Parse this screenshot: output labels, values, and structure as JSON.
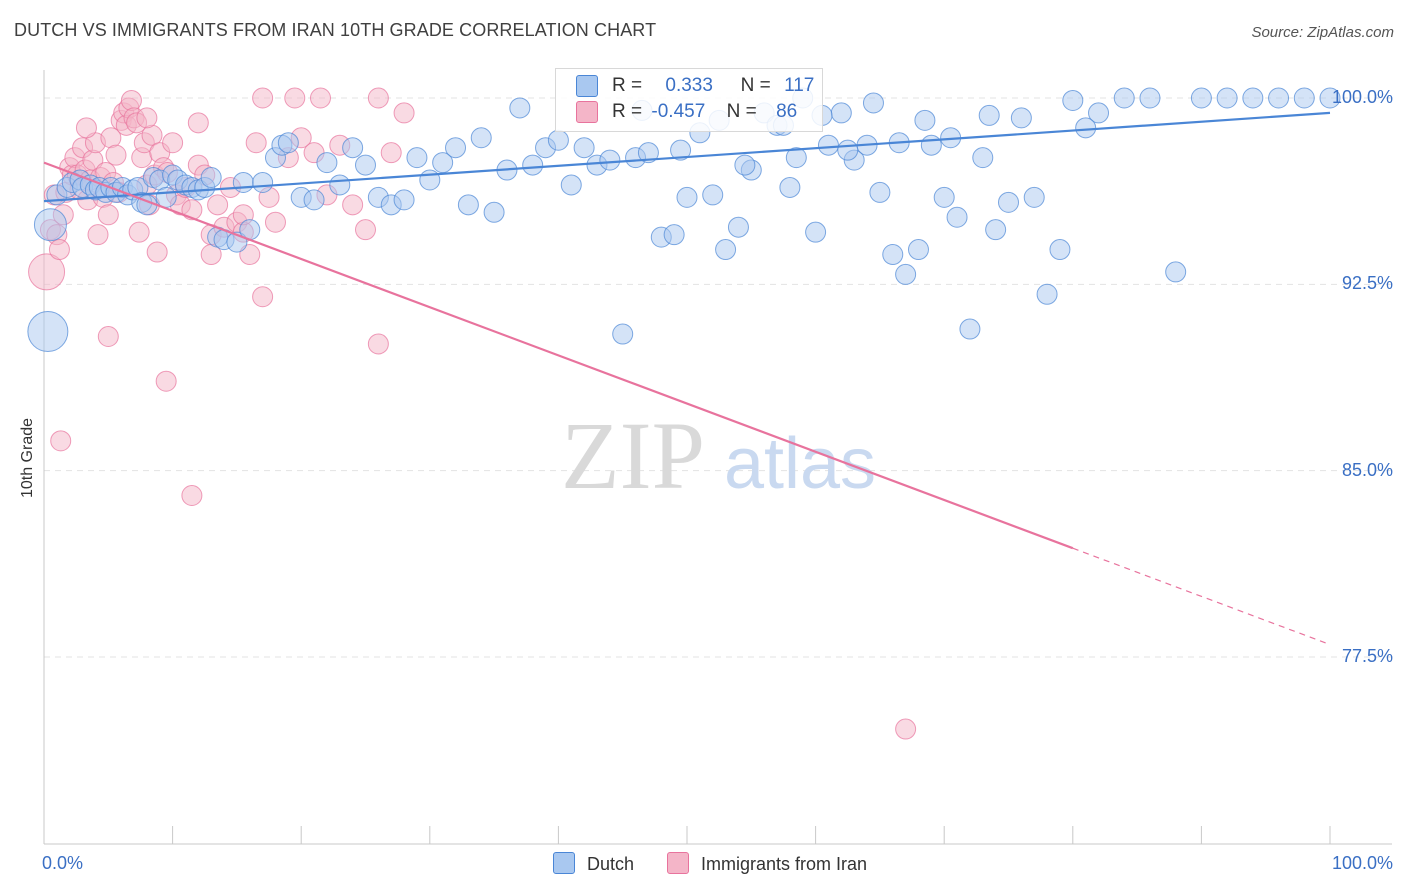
{
  "title": "DUTCH VS IMMIGRANTS FROM IRAN 10TH GRADE CORRELATION CHART",
  "source": "Source: ZipAtlas.com",
  "watermark": {
    "zip": "ZIP",
    "atlas": "atlas"
  },
  "legend": {
    "rows": [
      {
        "r_label": "R =",
        "r_value": "0.333",
        "n_label": "N =",
        "n_value": "117",
        "color": "#a9c8f0"
      },
      {
        "r_label": "R =",
        "r_value": "-0.457",
        "n_label": "N =",
        "n_value": "86",
        "color": "#f4b5c8"
      }
    ]
  },
  "bottom_legend": [
    {
      "label": "Dutch",
      "color": "#a9c8f0"
    },
    {
      "label": "Immigrants from Iran",
      "color": "#f4b5c8"
    }
  ],
  "chart_data": {
    "type": "scatter",
    "title": "DUTCH VS IMMIGRANTS FROM IRAN 10TH GRADE CORRELATION CHART",
    "xlabel": "",
    "ylabel": "10th Grade",
    "xlim": [
      0,
      100
    ],
    "ylim": [
      70.8,
      100.8
    ],
    "x_tick_labels": [
      "0.0%",
      "100.0%"
    ],
    "y_ticks": [
      100.0,
      92.5,
      85.0,
      77.5
    ],
    "y_tick_labels": [
      "100.0%",
      "92.5%",
      "85.0%",
      "77.5%"
    ],
    "grid": true,
    "series": [
      {
        "name": "Dutch",
        "color": "#4a86d6",
        "fill": "#a9c8f0",
        "trend": {
          "x0": 0,
          "y0": 95.85,
          "x1": 100,
          "y1": 99.4,
          "dashed_from": null
        },
        "points": [
          [
            0.3,
            90.6,
            20
          ],
          [
            0.5,
            94.9,
            16
          ],
          [
            1.0,
            96.1,
            10
          ],
          [
            1.8,
            96.4,
            10
          ],
          [
            2.2,
            96.6,
            10
          ],
          [
            2.8,
            96.7,
            10
          ],
          [
            3.0,
            96.4,
            10
          ],
          [
            3.6,
            96.5,
            10
          ],
          [
            4.0,
            96.3,
            10
          ],
          [
            4.3,
            96.4,
            10
          ],
          [
            4.8,
            96.2,
            10
          ],
          [
            5.2,
            96.4,
            10
          ],
          [
            5.6,
            96.2,
            10
          ],
          [
            6.1,
            96.4,
            10
          ],
          [
            6.5,
            96.1,
            10
          ],
          [
            6.9,
            96.3,
            10
          ],
          [
            7.3,
            96.4,
            10
          ],
          [
            7.6,
            95.8,
            10
          ],
          [
            8.0,
            95.7,
            10
          ],
          [
            8.5,
            96.8,
            10
          ],
          [
            9.0,
            96.7,
            10
          ],
          [
            9.5,
            96.0,
            10
          ],
          [
            10.0,
            96.9,
            10
          ],
          [
            10.4,
            96.7,
            10
          ],
          [
            11.0,
            96.5,
            10
          ],
          [
            11.5,
            96.4,
            10
          ],
          [
            12.0,
            96.3,
            10
          ],
          [
            12.5,
            96.4,
            10
          ],
          [
            13.0,
            96.8,
            10
          ],
          [
            13.5,
            94.4,
            10
          ],
          [
            14.0,
            94.3,
            10
          ],
          [
            15.0,
            94.2,
            10
          ],
          [
            15.5,
            96.6,
            10
          ],
          [
            16.0,
            94.7,
            10
          ],
          [
            17.0,
            96.6,
            10
          ],
          [
            18.0,
            97.6,
            10
          ],
          [
            18.5,
            98.1,
            10
          ],
          [
            19.0,
            98.2,
            10
          ],
          [
            20.0,
            96.0,
            10
          ],
          [
            21.0,
            95.9,
            10
          ],
          [
            22.0,
            97.4,
            10
          ],
          [
            23.0,
            96.5,
            10
          ],
          [
            24.0,
            98.0,
            10
          ],
          [
            25.0,
            97.3,
            10
          ],
          [
            26.0,
            96.0,
            10
          ],
          [
            27.0,
            95.7,
            10
          ],
          [
            28.0,
            95.9,
            10
          ],
          [
            29.0,
            97.6,
            10
          ],
          [
            30.0,
            96.7,
            10
          ],
          [
            31.0,
            97.4,
            10
          ],
          [
            32.0,
            98.0,
            10
          ],
          [
            33.0,
            95.7,
            10
          ],
          [
            34.0,
            98.4,
            10
          ],
          [
            35.0,
            95.4,
            10
          ],
          [
            36.0,
            97.1,
            10
          ],
          [
            37.0,
            99.6,
            10
          ],
          [
            38.0,
            97.3,
            10
          ],
          [
            39.0,
            98.0,
            10
          ],
          [
            40.0,
            98.3,
            10
          ],
          [
            41.0,
            96.5,
            10
          ],
          [
            42.0,
            98.0,
            10
          ],
          [
            43.0,
            97.3,
            10
          ],
          [
            44.0,
            97.5,
            10
          ],
          [
            45.0,
            90.5,
            10
          ],
          [
            46.0,
            97.6,
            10
          ],
          [
            47.0,
            97.8,
            10
          ],
          [
            48.0,
            94.4,
            10
          ],
          [
            49.0,
            94.5,
            10
          ],
          [
            50.0,
            96.0,
            10
          ],
          [
            51.0,
            98.6,
            10
          ],
          [
            52.0,
            96.1,
            10
          ],
          [
            53.0,
            93.9,
            10
          ],
          [
            54.0,
            94.8,
            10
          ],
          [
            55.0,
            97.1,
            10
          ],
          [
            56.0,
            99.4,
            10
          ],
          [
            57.0,
            98.9,
            10
          ],
          [
            58.0,
            96.4,
            10
          ],
          [
            59.0,
            100.0,
            10
          ],
          [
            60.0,
            94.6,
            10
          ],
          [
            61.0,
            98.1,
            10
          ],
          [
            62.0,
            99.4,
            10
          ],
          [
            63.0,
            97.5,
            10
          ],
          [
            64.0,
            98.1,
            10
          ],
          [
            65.0,
            96.2,
            10
          ],
          [
            66.0,
            93.7,
            10
          ],
          [
            67.0,
            92.9,
            10
          ],
          [
            68.0,
            93.9,
            10
          ],
          [
            69.0,
            98.1,
            10
          ],
          [
            70.0,
            96.0,
            10
          ],
          [
            71.0,
            95.2,
            10
          ],
          [
            72.0,
            90.7,
            10
          ],
          [
            73.0,
            97.6,
            10
          ],
          [
            74.0,
            94.7,
            10
          ],
          [
            75.0,
            95.8,
            10
          ],
          [
            76.0,
            99.2,
            10
          ],
          [
            77.0,
            96.0,
            10
          ],
          [
            78.0,
            92.1,
            10
          ],
          [
            79.0,
            93.9,
            10
          ],
          [
            80.0,
            99.9,
            10
          ],
          [
            82.0,
            99.4,
            10
          ],
          [
            84.0,
            100.0,
            10
          ],
          [
            86.0,
            100.0,
            10
          ],
          [
            88.0,
            93.0,
            10
          ],
          [
            90.0,
            100.0,
            10
          ],
          [
            92.0,
            100.0,
            10
          ],
          [
            94.0,
            100.0,
            10
          ],
          [
            96.0,
            100.0,
            10
          ],
          [
            98.0,
            100.0,
            10
          ],
          [
            100.0,
            100.0,
            10
          ],
          [
            46.5,
            99.5,
            10
          ],
          [
            52.5,
            99.1,
            10
          ],
          [
            57.5,
            98.9,
            10
          ],
          [
            60.5,
            99.3,
            10
          ],
          [
            64.5,
            99.8,
            10
          ],
          [
            68.5,
            99.1,
            10
          ],
          [
            73.5,
            99.3,
            10
          ],
          [
            81.0,
            98.8,
            10
          ],
          [
            49.5,
            97.9,
            10
          ],
          [
            54.5,
            97.3,
            10
          ],
          [
            58.5,
            97.6,
            10
          ],
          [
            62.5,
            97.9,
            10
          ],
          [
            66.5,
            98.2,
            10
          ],
          [
            70.5,
            98.4,
            10
          ]
        ]
      },
      {
        "name": "Immigrants from Iran",
        "color": "#e8739d",
        "fill": "#f4b5c8",
        "trend": {
          "x0": 0,
          "y0": 97.4,
          "x1": 100,
          "y1": 78.0,
          "dashed_from": 80
        },
        "points": [
          [
            0.2,
            93.0,
            18
          ],
          [
            0.5,
            94.7,
            10
          ],
          [
            0.8,
            96.1,
            10
          ],
          [
            1.0,
            94.5,
            10
          ],
          [
            1.2,
            93.9,
            10
          ],
          [
            1.5,
            95.3,
            10
          ],
          [
            1.7,
            96.2,
            10
          ],
          [
            2.0,
            97.2,
            10
          ],
          [
            2.2,
            96.9,
            10
          ],
          [
            2.4,
            97.6,
            10
          ],
          [
            2.6,
            96.9,
            10
          ],
          [
            2.8,
            96.3,
            10
          ],
          [
            3.0,
            98.0,
            10
          ],
          [
            3.2,
            97.1,
            10
          ],
          [
            3.4,
            95.9,
            10
          ],
          [
            3.6,
            96.7,
            10
          ],
          [
            3.8,
            97.5,
            10
          ],
          [
            4.0,
            98.2,
            10
          ],
          [
            4.2,
            94.5,
            10
          ],
          [
            4.4,
            96.8,
            10
          ],
          [
            4.6,
            96.0,
            10
          ],
          [
            4.8,
            97.0,
            10
          ],
          [
            5.0,
            95.3,
            10
          ],
          [
            5.2,
            98.4,
            10
          ],
          [
            5.4,
            96.6,
            10
          ],
          [
            5.6,
            97.7,
            10
          ],
          [
            5.8,
            96.2,
            10
          ],
          [
            6.0,
            99.1,
            10
          ],
          [
            6.2,
            99.4,
            10
          ],
          [
            6.4,
            98.9,
            10
          ],
          [
            6.6,
            99.6,
            10
          ],
          [
            6.8,
            99.9,
            10
          ],
          [
            7.0,
            99.2,
            10
          ],
          [
            7.2,
            99.0,
            10
          ],
          [
            7.4,
            94.6,
            10
          ],
          [
            7.6,
            97.6,
            10
          ],
          [
            7.8,
            98.2,
            10
          ],
          [
            8.0,
            96.5,
            10
          ],
          [
            8.2,
            95.7,
            10
          ],
          [
            8.4,
            98.5,
            10
          ],
          [
            8.6,
            96.9,
            10
          ],
          [
            8.8,
            93.8,
            10
          ],
          [
            9.0,
            97.8,
            10
          ],
          [
            9.3,
            97.2,
            10
          ],
          [
            9.6,
            97.0,
            10
          ],
          [
            10.0,
            98.2,
            10
          ],
          [
            10.3,
            96.1,
            10
          ],
          [
            10.6,
            95.7,
            10
          ],
          [
            11.0,
            96.4,
            10
          ],
          [
            11.5,
            95.5,
            10
          ],
          [
            12.0,
            97.3,
            10
          ],
          [
            12.5,
            96.9,
            10
          ],
          [
            13.0,
            94.5,
            10
          ],
          [
            13.5,
            95.7,
            10
          ],
          [
            14.0,
            94.8,
            10
          ],
          [
            14.5,
            96.4,
            10
          ],
          [
            15.0,
            95.0,
            10
          ],
          [
            15.5,
            94.6,
            10
          ],
          [
            16.0,
            93.7,
            10
          ],
          [
            16.5,
            98.2,
            10
          ],
          [
            17.0,
            92.0,
            10
          ],
          [
            17.5,
            96.0,
            10
          ],
          [
            18.0,
            95.0,
            10
          ],
          [
            19.0,
            97.6,
            10
          ],
          [
            20.0,
            98.4,
            10
          ],
          [
            21.0,
            97.8,
            10
          ],
          [
            22.0,
            96.1,
            10
          ],
          [
            23.0,
            98.1,
            10
          ],
          [
            24.0,
            95.7,
            10
          ],
          [
            25.0,
            94.7,
            10
          ],
          [
            26.0,
            90.1,
            10
          ],
          [
            27.0,
            97.8,
            10
          ],
          [
            28.0,
            99.4,
            10
          ],
          [
            1.3,
            86.2,
            10
          ],
          [
            5.0,
            90.4,
            10
          ],
          [
            9.5,
            88.6,
            10
          ],
          [
            11.5,
            84.0,
            10
          ],
          [
            13.0,
            93.7,
            10
          ],
          [
            15.5,
            95.3,
            10
          ],
          [
            17.0,
            100.0,
            10
          ],
          [
            19.5,
            100.0,
            10
          ],
          [
            21.5,
            100.0,
            10
          ],
          [
            26.0,
            100.0,
            10
          ],
          [
            8.0,
            99.2,
            10
          ],
          [
            12.0,
            99.0,
            10
          ],
          [
            67.0,
            74.6,
            10
          ],
          [
            3.3,
            98.8,
            10
          ]
        ]
      }
    ]
  }
}
